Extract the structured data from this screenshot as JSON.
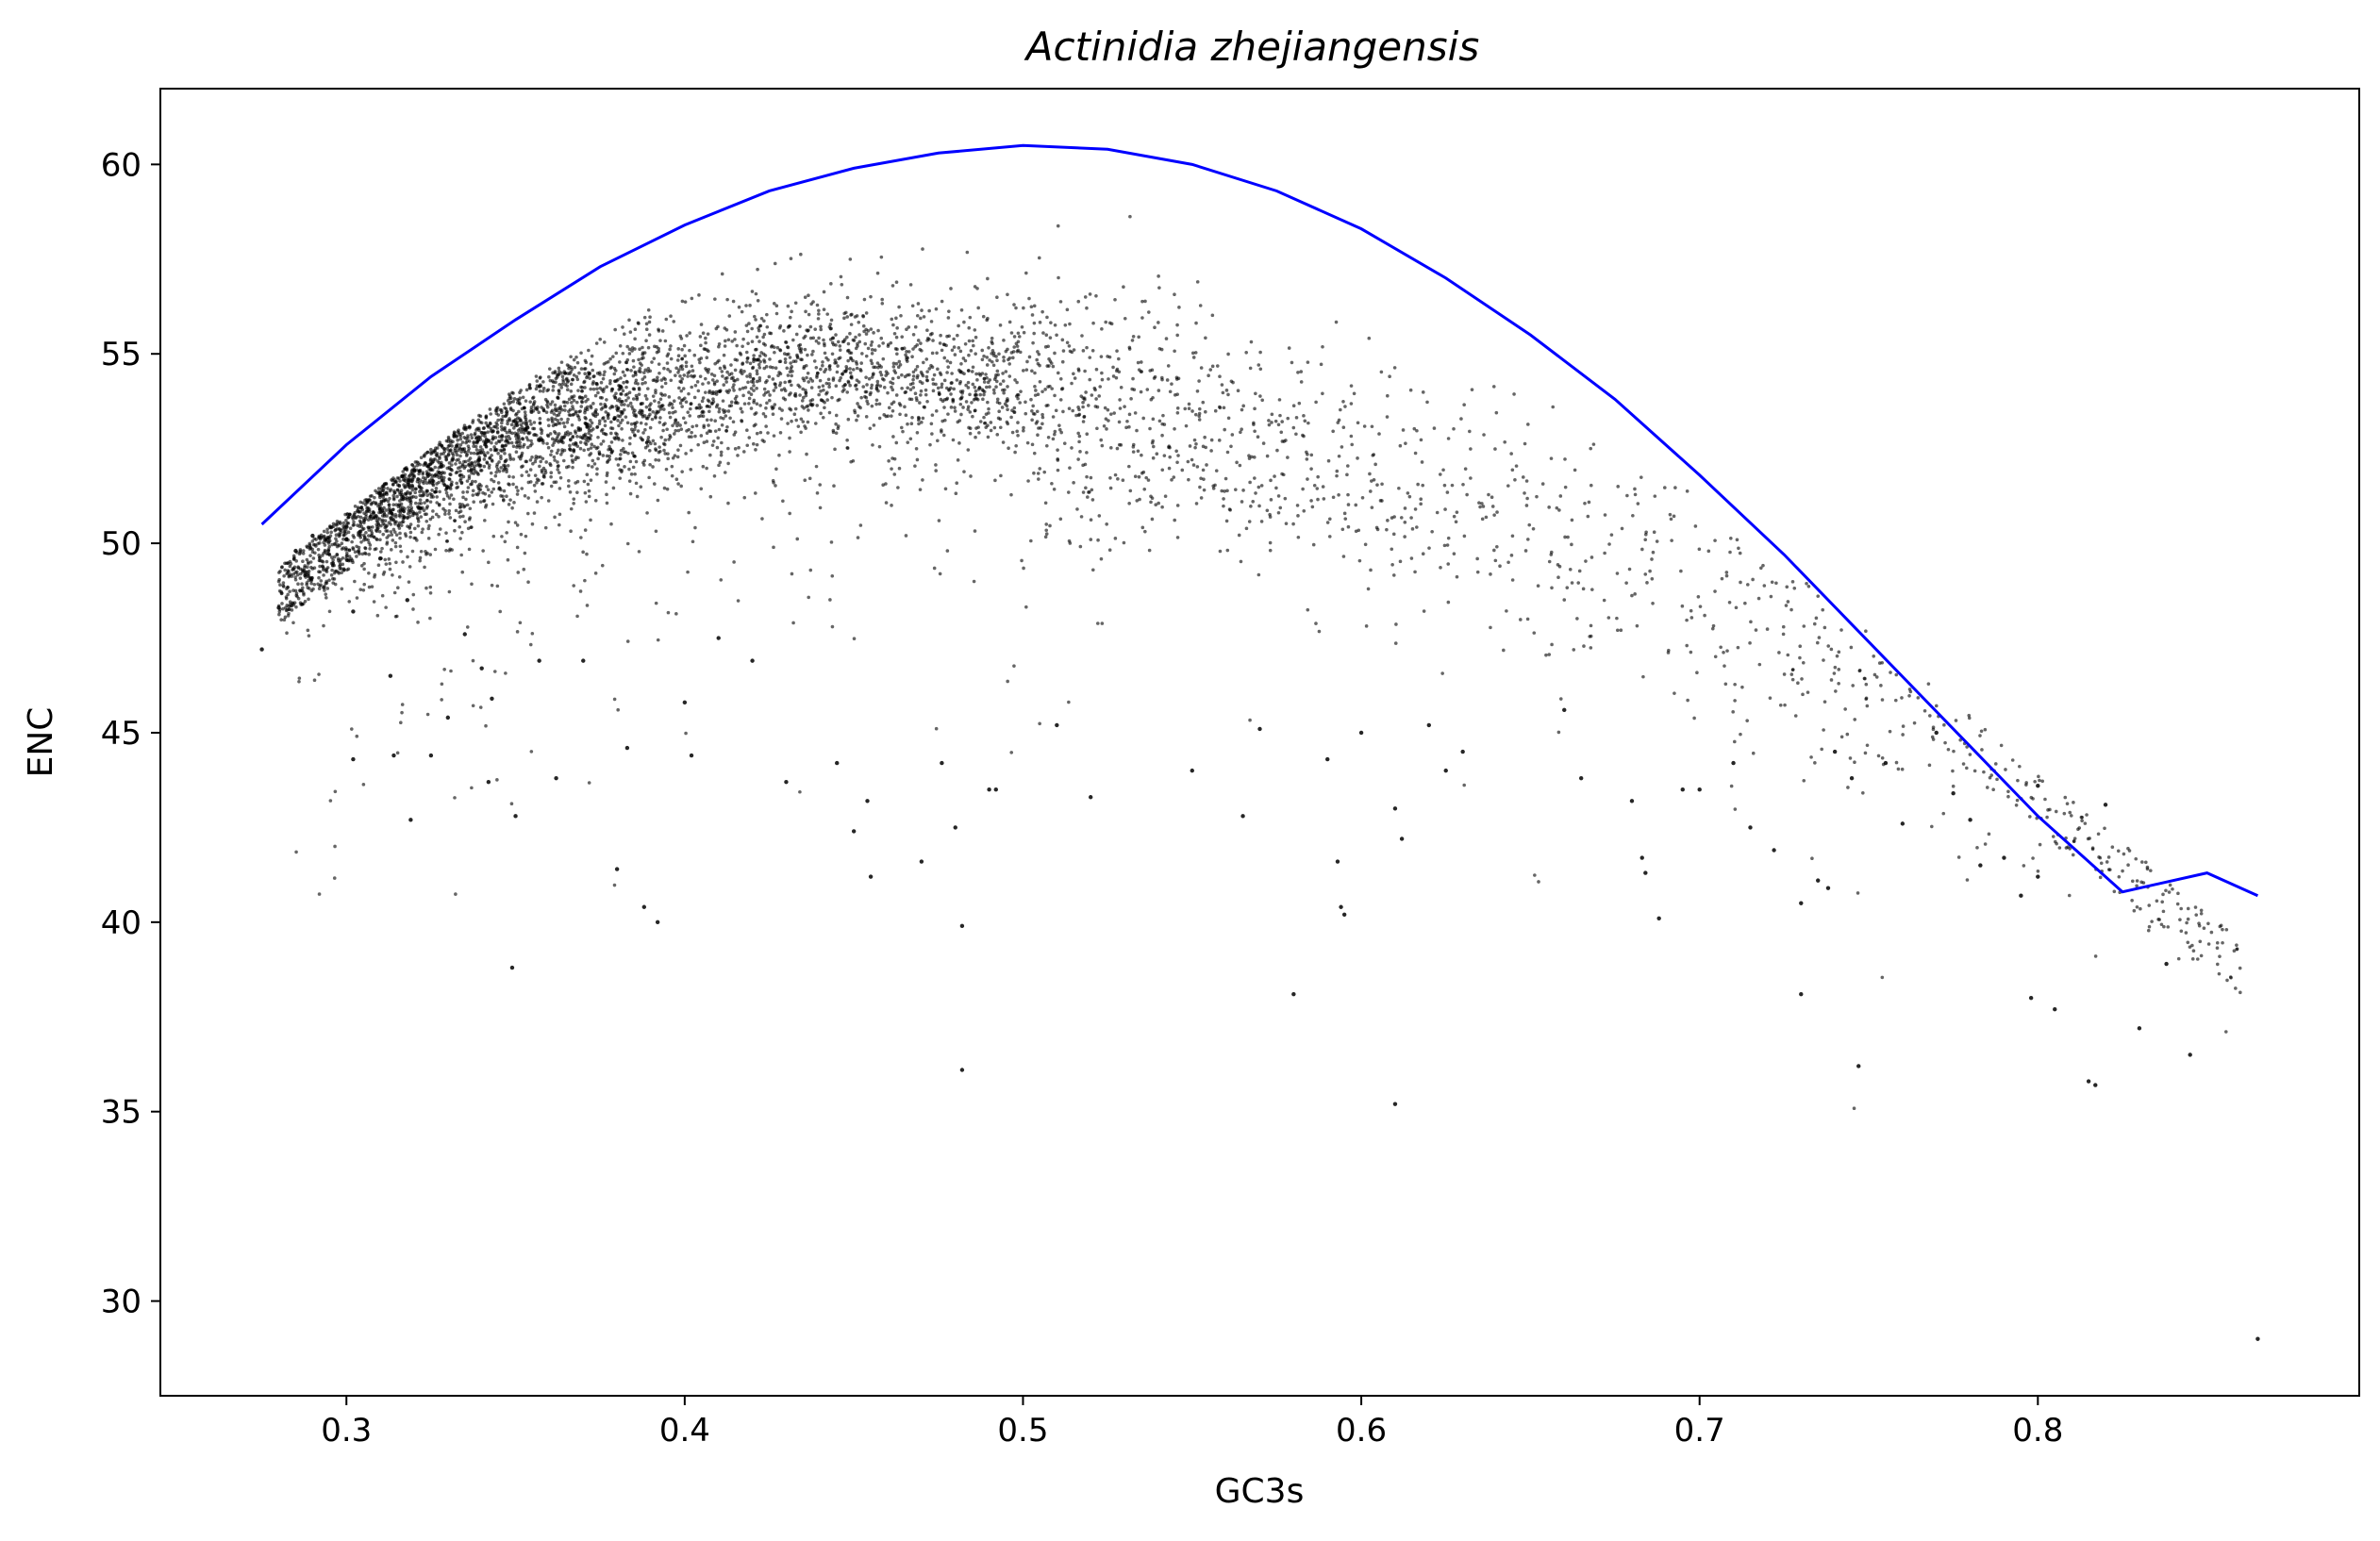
{
  "chart_data": {
    "type": "scatter",
    "title": "Actinidia zhejiangensis",
    "xlabel": "GC3s",
    "ylabel": "ENC",
    "xlim": [
      0.245,
      0.895
    ],
    "ylim": [
      27.5,
      62.0
    ],
    "xticks": [
      0.3,
      0.4,
      0.5,
      0.6,
      0.7,
      0.8
    ],
    "xtick_labels": [
      "0.3",
      "0.4",
      "0.5",
      "0.6",
      "0.7",
      "0.8"
    ],
    "yticks": [
      30,
      35,
      40,
      45,
      50,
      55,
      60
    ],
    "ytick_labels": [
      "30",
      "35",
      "40",
      "45",
      "50",
      "55",
      "60"
    ],
    "grid": false,
    "curve_color": "#0000ff",
    "point_color": "#000000",
    "expected_curve": {
      "x": [
        0.275,
        0.3,
        0.325,
        0.35,
        0.375,
        0.4,
        0.425,
        0.45,
        0.475,
        0.5,
        0.525,
        0.55,
        0.575,
        0.6,
        0.625,
        0.65,
        0.675,
        0.7,
        0.725,
        0.75,
        0.775,
        0.8,
        0.825,
        0.85,
        0.865
      ],
      "y": [
        50.5,
        52.6,
        54.4,
        55.9,
        57.3,
        58.4,
        59.3,
        59.9,
        60.3,
        60.5,
        60.4,
        60.0,
        59.3,
        58.3,
        57.0,
        55.5,
        53.8,
        51.8,
        49.7,
        47.4,
        45.1,
        42.8,
        40.8,
        41.3,
        40.7
      ],
      "note_shape": "inverted-arch"
    },
    "points": [
      [
        0.275,
        47.2
      ],
      [
        0.28,
        48.3
      ],
      [
        0.285,
        49.8
      ],
      [
        0.29,
        50.2
      ],
      [
        0.3,
        50.1
      ],
      [
        0.302,
        48.2
      ],
      [
        0.302,
        44.3
      ],
      [
        0.31,
        49.6
      ],
      [
        0.313,
        46.5
      ],
      [
        0.314,
        44.4
      ],
      [
        0.318,
        48.5
      ],
      [
        0.319,
        42.7
      ],
      [
        0.325,
        44.4
      ],
      [
        0.33,
        45.4
      ],
      [
        0.335,
        47.6
      ],
      [
        0.34,
        46.7
      ],
      [
        0.342,
        43.7
      ],
      [
        0.343,
        45.9
      ],
      [
        0.349,
        38.8
      ],
      [
        0.35,
        42.8
      ],
      [
        0.357,
        46.9
      ],
      [
        0.362,
        43.8
      ],
      [
        0.37,
        46.9
      ],
      [
        0.38,
        41.4
      ],
      [
        0.383,
        44.6
      ],
      [
        0.388,
        40.4
      ],
      [
        0.392,
        40.0
      ],
      [
        0.4,
        45.8
      ],
      [
        0.402,
        44.4
      ],
      [
        0.41,
        47.5
      ],
      [
        0.42,
        46.9
      ],
      [
        0.43,
        43.7
      ],
      [
        0.445,
        44.2
      ],
      [
        0.45,
        42.4
      ],
      [
        0.454,
        43.2
      ],
      [
        0.455,
        41.2
      ],
      [
        0.47,
        41.6
      ],
      [
        0.476,
        44.2
      ],
      [
        0.48,
        42.5
      ],
      [
        0.482,
        39.9
      ],
      [
        0.482,
        36.1
      ],
      [
        0.49,
        43.5
      ],
      [
        0.492,
        43.5
      ],
      [
        0.51,
        45.2
      ],
      [
        0.52,
        43.3
      ],
      [
        0.55,
        44.0
      ],
      [
        0.565,
        42.8
      ],
      [
        0.57,
        45.1
      ],
      [
        0.58,
        38.1
      ],
      [
        0.59,
        44.3
      ],
      [
        0.593,
        41.6
      ],
      [
        0.594,
        40.4
      ],
      [
        0.595,
        40.2
      ],
      [
        0.6,
        45.0
      ],
      [
        0.61,
        43.0
      ],
      [
        0.612,
        42.2
      ],
      [
        0.61,
        35.2
      ],
      [
        0.62,
        45.2
      ],
      [
        0.625,
        44.0
      ],
      [
        0.63,
        44.5
      ],
      [
        0.66,
        45.6
      ],
      [
        0.665,
        43.8
      ],
      [
        0.68,
        43.2
      ],
      [
        0.683,
        41.7
      ],
      [
        0.684,
        41.3
      ],
      [
        0.688,
        40.1
      ],
      [
        0.695,
        43.5
      ],
      [
        0.7,
        43.5
      ],
      [
        0.71,
        44.2
      ],
      [
        0.715,
        42.5
      ],
      [
        0.722,
        41.9
      ],
      [
        0.73,
        38.1
      ],
      [
        0.73,
        40.5
      ],
      [
        0.735,
        41.1
      ],
      [
        0.738,
        40.9
      ],
      [
        0.74,
        44.5
      ],
      [
        0.745,
        43.8
      ],
      [
        0.747,
        36.2
      ],
      [
        0.755,
        44.2
      ],
      [
        0.76,
        42.6
      ],
      [
        0.77,
        45.0
      ],
      [
        0.775,
        43.4
      ],
      [
        0.78,
        42.7
      ],
      [
        0.783,
        41.5
      ],
      [
        0.79,
        41.7
      ],
      [
        0.795,
        40.7
      ],
      [
        0.798,
        38.0
      ],
      [
        0.8,
        43.6
      ],
      [
        0.8,
        41.2
      ],
      [
        0.805,
        37.7
      ],
      [
        0.815,
        35.8
      ],
      [
        0.817,
        35.7
      ],
      [
        0.82,
        43.1
      ],
      [
        0.83,
        37.2
      ],
      [
        0.838,
        38.9
      ],
      [
        0.845,
        36.5
      ],
      [
        0.865,
        29.0
      ]
    ],
    "dense_cloud": {
      "x_min": 0.28,
      "x_max": 0.86,
      "count": 5600,
      "center_track": [
        [
          0.3,
          51.0
        ],
        [
          0.33,
          52.2
        ],
        [
          0.36,
          53.1
        ],
        [
          0.39,
          53.8
        ],
        [
          0.42,
          54.3
        ],
        [
          0.45,
          54.6
        ],
        [
          0.48,
          54.4
        ],
        [
          0.51,
          54.0
        ],
        [
          0.54,
          53.3
        ],
        [
          0.57,
          52.6
        ],
        [
          0.6,
          51.8
        ],
        [
          0.63,
          51.0
        ],
        [
          0.66,
          50.1
        ],
        [
          0.69,
          49.0
        ],
        [
          0.72,
          47.8
        ],
        [
          0.75,
          46.5
        ],
        [
          0.78,
          45.2
        ],
        [
          0.81,
          43.9
        ],
        [
          0.84,
          42.6
        ],
        [
          0.86,
          41.8
        ]
      ],
      "density_peak_x": 0.38,
      "upper_bound_gap": 3.0
    }
  }
}
